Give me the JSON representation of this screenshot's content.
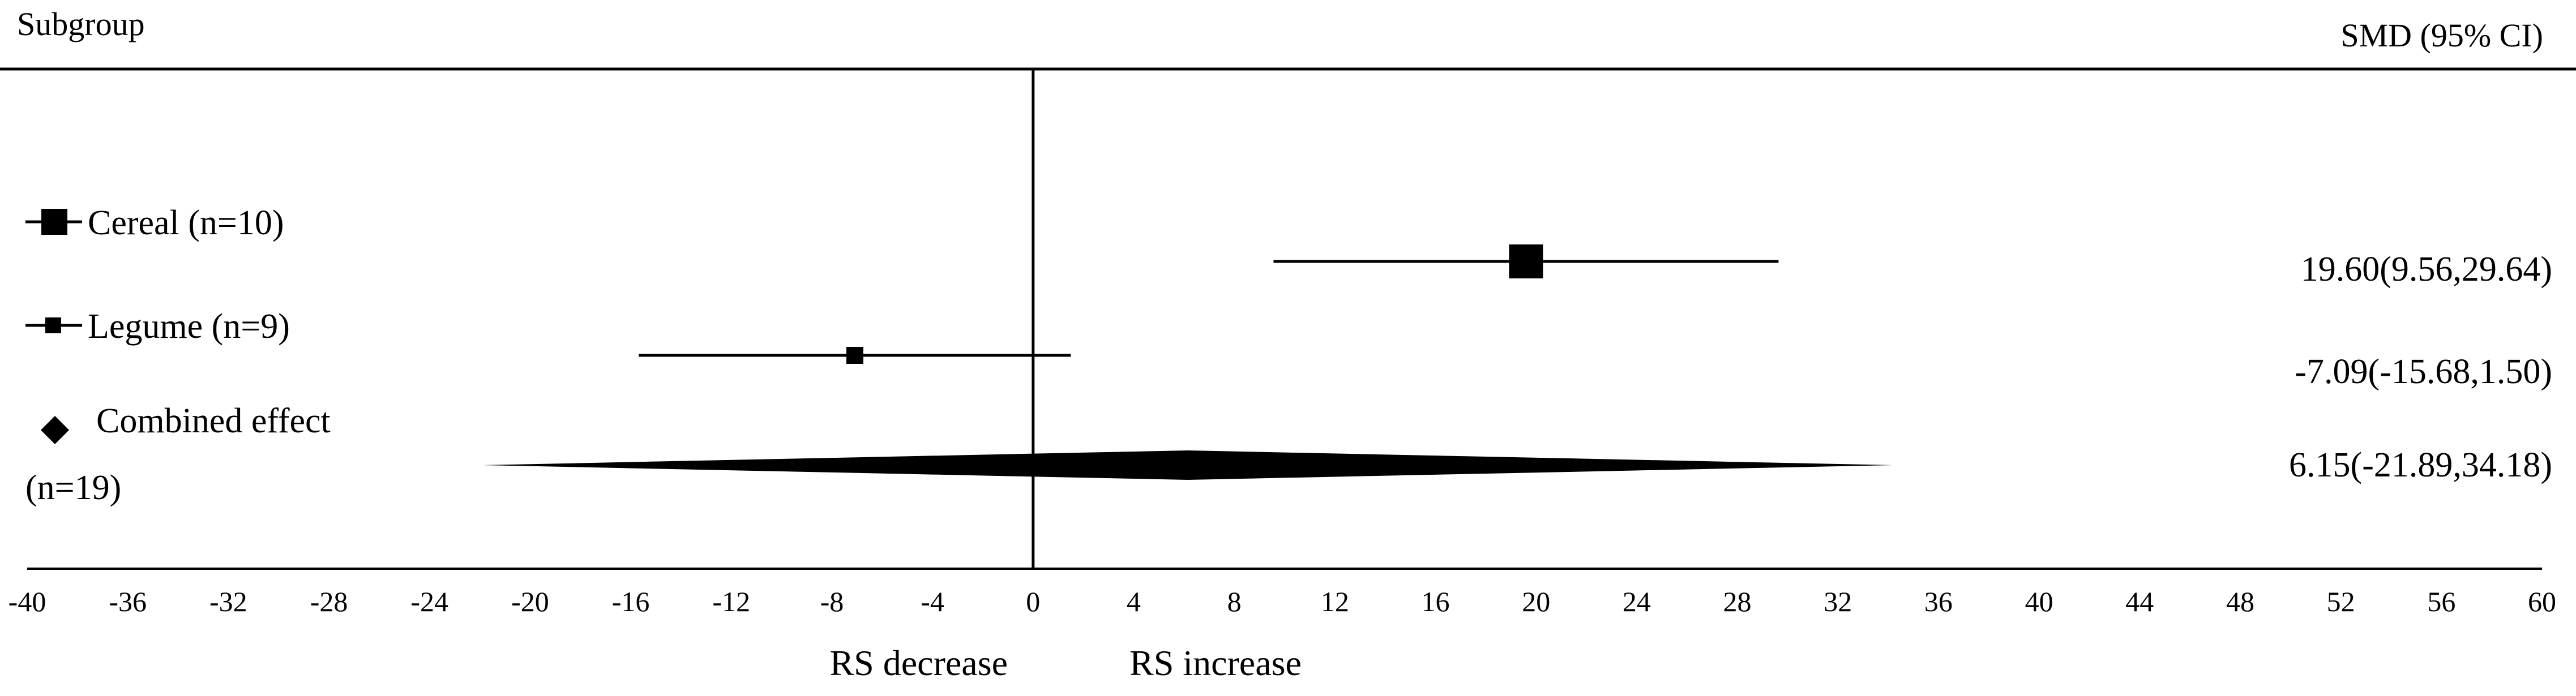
{
  "chart_data": {
    "type": "forest",
    "header_left": "Subgroup",
    "header_right": "SMD (95% CI)",
    "xlim": [
      -40,
      60
    ],
    "x_ticks": [
      -40,
      -36,
      -32,
      -28,
      -24,
      -20,
      -16,
      -12,
      -8,
      -4,
      0,
      4,
      8,
      12,
      16,
      20,
      24,
      28,
      32,
      36,
      40,
      44,
      48,
      52,
      56,
      60
    ],
    "reference_line": 0,
    "direction_labels": {
      "left": "RS decrease",
      "right": "RS increase"
    },
    "subgroups": [
      {
        "label": "Cereal (n=10)",
        "smd": 19.6,
        "ci_low": 9.56,
        "ci_high": 29.64,
        "smd_text": "19.60(9.56,29.64)",
        "marker": "square-large"
      },
      {
        "label": "Legume (n=9)",
        "smd": -7.09,
        "ci_low": -15.68,
        "ci_high": 1.5,
        "smd_text": "-7.09(-15.68,1.50)",
        "marker": "square-small"
      }
    ],
    "combined": {
      "label_line1": "Combined effect",
      "label_line2": "(n=19)",
      "smd": 6.15,
      "ci_low": -21.89,
      "ci_high": 34.18,
      "smd_text": "6.15(-21.89,34.18)",
      "marker": "diamond"
    },
    "colors": {
      "ink": "#000000",
      "background": "#ffffff"
    }
  }
}
